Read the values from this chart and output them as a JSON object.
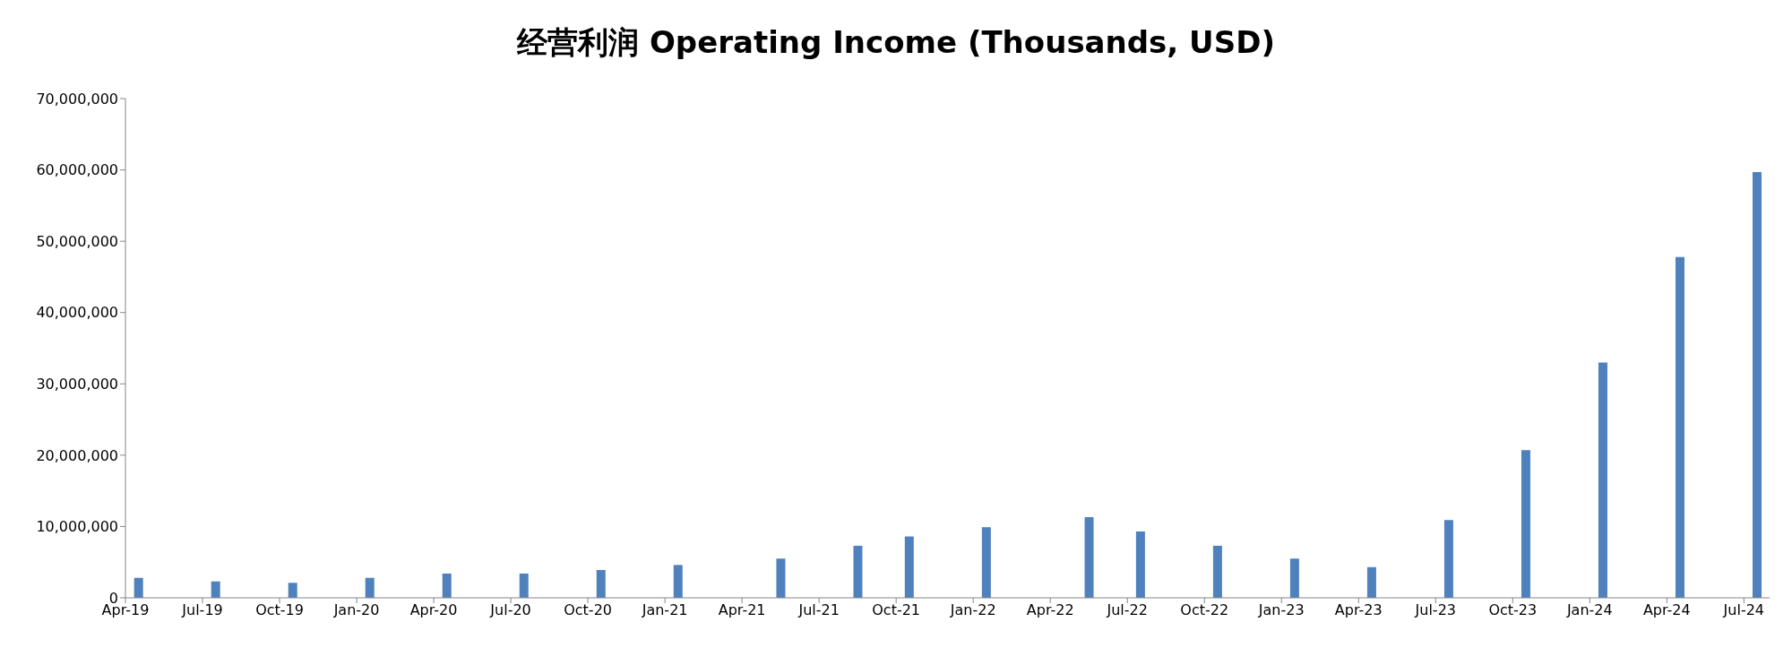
{
  "chart_data": {
    "type": "bar",
    "title": "经营利润 Operating Income (Thousands, USD)",
    "x": [
      "2019-04-16",
      "2019-07-16",
      "2019-10-16",
      "2020-01-16",
      "2020-04-16",
      "2020-07-16",
      "2020-10-16",
      "2021-01-16",
      "2021-05-16",
      "2021-08-16",
      "2021-10-16",
      "2022-01-16",
      "2022-05-16",
      "2022-07-16",
      "2022-10-16",
      "2023-01-16",
      "2023-04-16",
      "2023-07-16",
      "2023-10-16",
      "2024-01-16",
      "2024-04-16",
      "2024-07-16"
    ],
    "values": [
      2800000,
      2300000,
      2100000,
      2800000,
      3400000,
      3400000,
      3900000,
      4600000,
      5500000,
      7300000,
      8600000,
      9900000,
      11300000,
      9300000,
      7300000,
      5500000,
      4300000,
      10900000,
      20700000,
      33000000,
      47800000,
      59700000
    ],
    "color": "#4f81bd",
    "ylim": [
      0,
      70000000
    ],
    "yticks": [
      {
        "value": 0,
        "label": "0"
      },
      {
        "value": 10000000,
        "label": "10,000,000"
      },
      {
        "value": 20000000,
        "label": "20,000,000"
      },
      {
        "value": 30000000,
        "label": "30,000,000"
      },
      {
        "value": 40000000,
        "label": "40,000,000"
      },
      {
        "value": 50000000,
        "label": "50,000,000"
      },
      {
        "value": 60000000,
        "label": "60,000,000"
      },
      {
        "value": 70000000,
        "label": "70,000,000"
      }
    ],
    "xlim": [
      "2019-04",
      "2024-08"
    ],
    "xticks": [
      {
        "value": "2019-04",
        "label": "Apr-19"
      },
      {
        "value": "2019-07",
        "label": "Jul-19"
      },
      {
        "value": "2019-10",
        "label": "Oct-19"
      },
      {
        "value": "2020-01",
        "label": "Jan-20"
      },
      {
        "value": "2020-04",
        "label": "Apr-20"
      },
      {
        "value": "2020-07",
        "label": "Jul-20"
      },
      {
        "value": "2020-10",
        "label": "Oct-20"
      },
      {
        "value": "2021-01",
        "label": "Jan-21"
      },
      {
        "value": "2021-04",
        "label": "Apr-21"
      },
      {
        "value": "2021-07",
        "label": "Jul-21"
      },
      {
        "value": "2021-10",
        "label": "Oct-21"
      },
      {
        "value": "2022-01",
        "label": "Jan-22"
      },
      {
        "value": "2022-04",
        "label": "Apr-22"
      },
      {
        "value": "2022-07",
        "label": "Jul-22"
      },
      {
        "value": "2022-10",
        "label": "Oct-22"
      },
      {
        "value": "2023-01",
        "label": "Jan-23"
      },
      {
        "value": "2023-04",
        "label": "Apr-23"
      },
      {
        "value": "2023-07",
        "label": "Jul-23"
      },
      {
        "value": "2023-10",
        "label": "Oct-23"
      },
      {
        "value": "2024-01",
        "label": "Jan-24"
      },
      {
        "value": "2024-04",
        "label": "Apr-24"
      },
      {
        "value": "2024-07",
        "label": "Jul-24"
      }
    ],
    "grid": false,
    "legend": false
  }
}
